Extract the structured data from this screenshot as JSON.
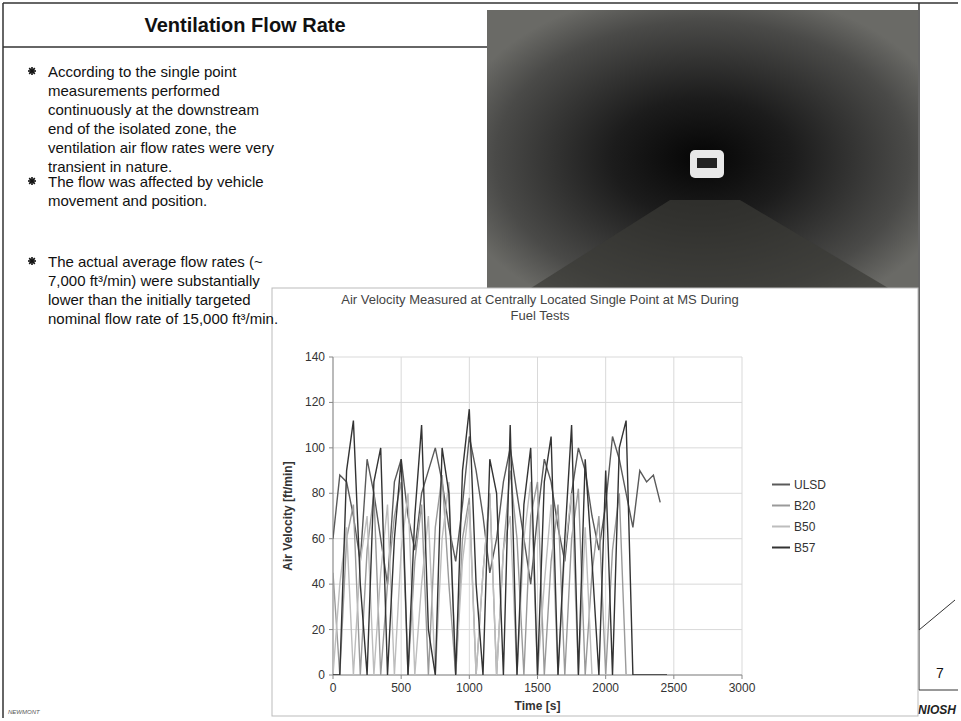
{
  "slide": {
    "title": "Ventilation Flow Rate",
    "bullets": [
      "According to the single point measurements performed continuously at the downstream end of the isolated zone, the ventilation air flow rates were very transient in nature.",
      "The flow was affected by vehicle movement and position.",
      "The actual average flow rates (~ 7,000 ft³/min) were substantially lower than the initially targeted nominal flow rate of 15,000 ft³/min."
    ],
    "page_number": "7",
    "logos": [
      "NEWMONT",
      "NIOSH"
    ]
  },
  "chart_data": {
    "type": "line",
    "title": "Air Velocity Measured at Centrally Located Single Point at MS During Fuel Tests",
    "x_label": "Time [s]",
    "y_label": "Air Velocity [ft/min]",
    "x": [
      0,
      50,
      100,
      150,
      200,
      250,
      300,
      350,
      400,
      450,
      500,
      550,
      600,
      650,
      700,
      750,
      800,
      850,
      900,
      950,
      1000,
      1050,
      1100,
      1150,
      1200,
      1250,
      1300,
      1350,
      1400,
      1450,
      1500,
      1550,
      1600,
      1650,
      1700,
      1750,
      1800,
      1850,
      1900,
      1950,
      2000,
      2050,
      2100,
      2150,
      2200,
      2250,
      2300,
      2350,
      2400,
      2450
    ],
    "series": [
      {
        "name": "ULSD",
        "color": "#5a5a5a",
        "values": [
          60,
          88,
          85,
          70,
          50,
          95,
          80,
          60,
          40,
          85,
          95,
          70,
          55,
          80,
          90,
          100,
          85,
          65,
          50,
          75,
          105,
          90,
          70,
          45,
          60,
          85,
          100,
          80,
          60,
          40,
          70,
          95,
          85,
          65,
          50,
          80,
          100,
          90,
          70,
          55,
          75,
          105,
          95,
          80,
          65,
          90,
          85,
          88,
          76,
          null
        ]
      },
      {
        "name": "B20",
        "color": "#9a9a9a",
        "values": [
          45,
          0,
          60,
          75,
          0,
          55,
          80,
          0,
          40,
          70,
          85,
          0,
          50,
          75,
          0,
          65,
          88,
          40,
          0,
          60,
          78,
          0,
          45,
          80,
          0,
          55,
          90,
          60,
          0,
          70,
          85,
          0,
          50,
          75,
          0,
          60,
          82,
          0,
          45,
          70,
          0,
          55,
          80,
          0,
          0,
          0,
          0,
          0,
          0,
          0
        ]
      },
      {
        "name": "B50",
        "color": "#bdbdbd",
        "values": [
          0,
          40,
          65,
          0,
          50,
          70,
          0,
          45,
          75,
          0,
          55,
          80,
          0,
          40,
          70,
          0,
          60,
          85,
          0,
          50,
          75,
          0,
          45,
          80,
          0,
          55,
          70,
          0,
          60,
          85,
          0,
          40,
          75,
          0,
          55,
          80,
          0,
          65,
          0,
          0,
          0,
          0,
          0,
          0,
          0,
          0,
          0,
          0,
          0,
          0
        ]
      },
      {
        "name": "B57",
        "color": "#333333",
        "values": [
          0,
          0,
          90,
          112,
          40,
          0,
          85,
          100,
          0,
          60,
          95,
          0,
          70,
          110,
          20,
          0,
          100,
          80,
          0,
          90,
          117,
          40,
          0,
          95,
          80,
          0,
          110,
          0,
          75,
          100,
          0,
          85,
          105,
          0,
          60,
          110,
          0,
          95,
          50,
          0,
          90,
          0,
          100,
          112,
          0,
          0,
          0,
          0,
          0,
          0
        ]
      }
    ],
    "xlim": [
      0,
      3000
    ],
    "xticks": [
      0,
      500,
      1000,
      1500,
      2000,
      2500,
      3000
    ],
    "ylim": [
      0,
      140
    ],
    "yticks": [
      0,
      20,
      40,
      60,
      80,
      100,
      120,
      140
    ],
    "grid": true,
    "legend": "right"
  }
}
